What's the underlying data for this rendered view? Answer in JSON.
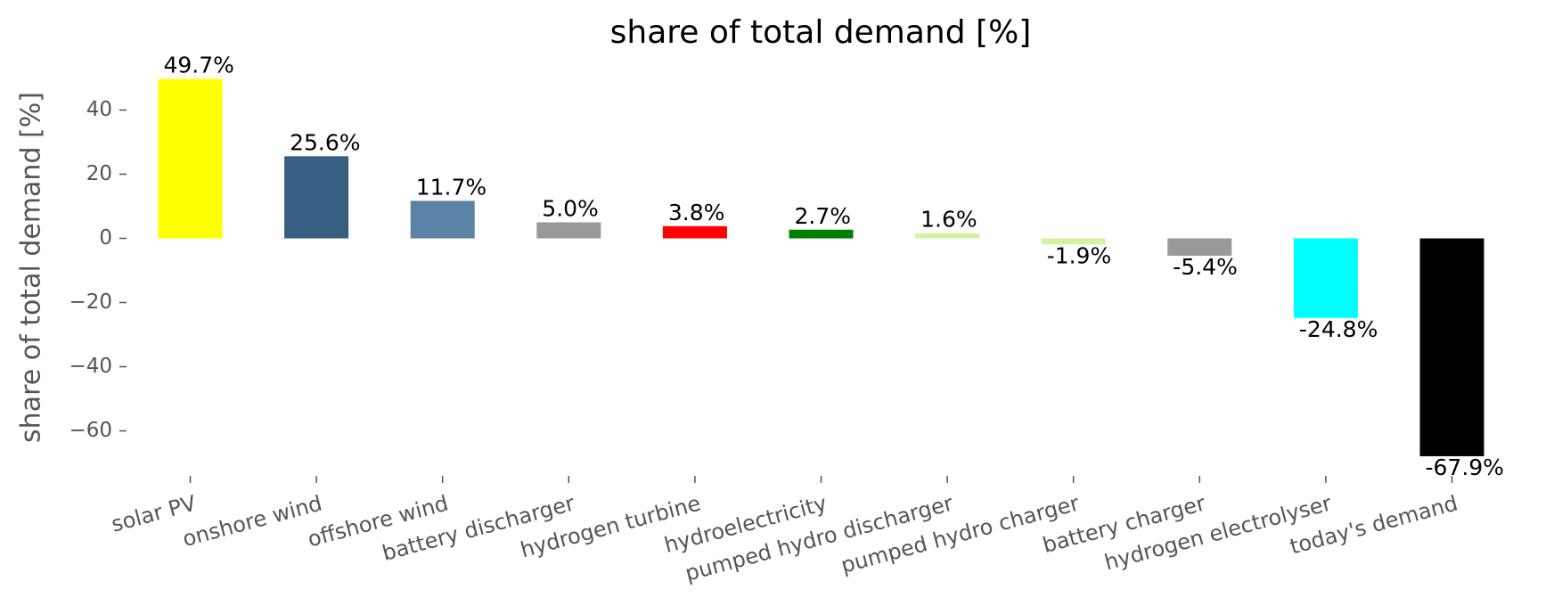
{
  "chart_data": {
    "type": "bar",
    "title": "share of total demand [%]",
    "y_label": "share of total demand [%]",
    "categories": [
      "solar PV",
      "onshore wind",
      "offshore wind",
      "battery discharger",
      "hydrogen turbine",
      "hydroelectricity",
      "pumped hydro discharger",
      "pumped hydro charger",
      "battery charger",
      "hydrogen electrolyser",
      "today's demand"
    ],
    "values": [
      49.7,
      25.6,
      11.7,
      5.0,
      3.8,
      2.7,
      1.6,
      -1.9,
      -5.4,
      -24.8,
      -67.9
    ],
    "value_labels": [
      "49.7%",
      "25.6%",
      "11.7%",
      "5.0%",
      "3.8%",
      "2.7%",
      "1.6%",
      "-1.9%",
      "-5.4%",
      "-24.8%",
      "-67.9%"
    ],
    "colors": [
      "#ffff00",
      "#365f81",
      "#5b83a5",
      "#999999",
      "#ff0000",
      "#008000",
      "#d3f3a0",
      "#d3f3a0",
      "#999999",
      "#00ffff",
      "#000000"
    ],
    "ylim": [
      -73,
      52
    ],
    "yticks": [
      {
        "value": -60,
        "label": "−60"
      },
      {
        "value": -40,
        "label": "−40"
      },
      {
        "value": -20,
        "label": "−20"
      },
      0,
      20,
      40
    ],
    "grid": false
  }
}
